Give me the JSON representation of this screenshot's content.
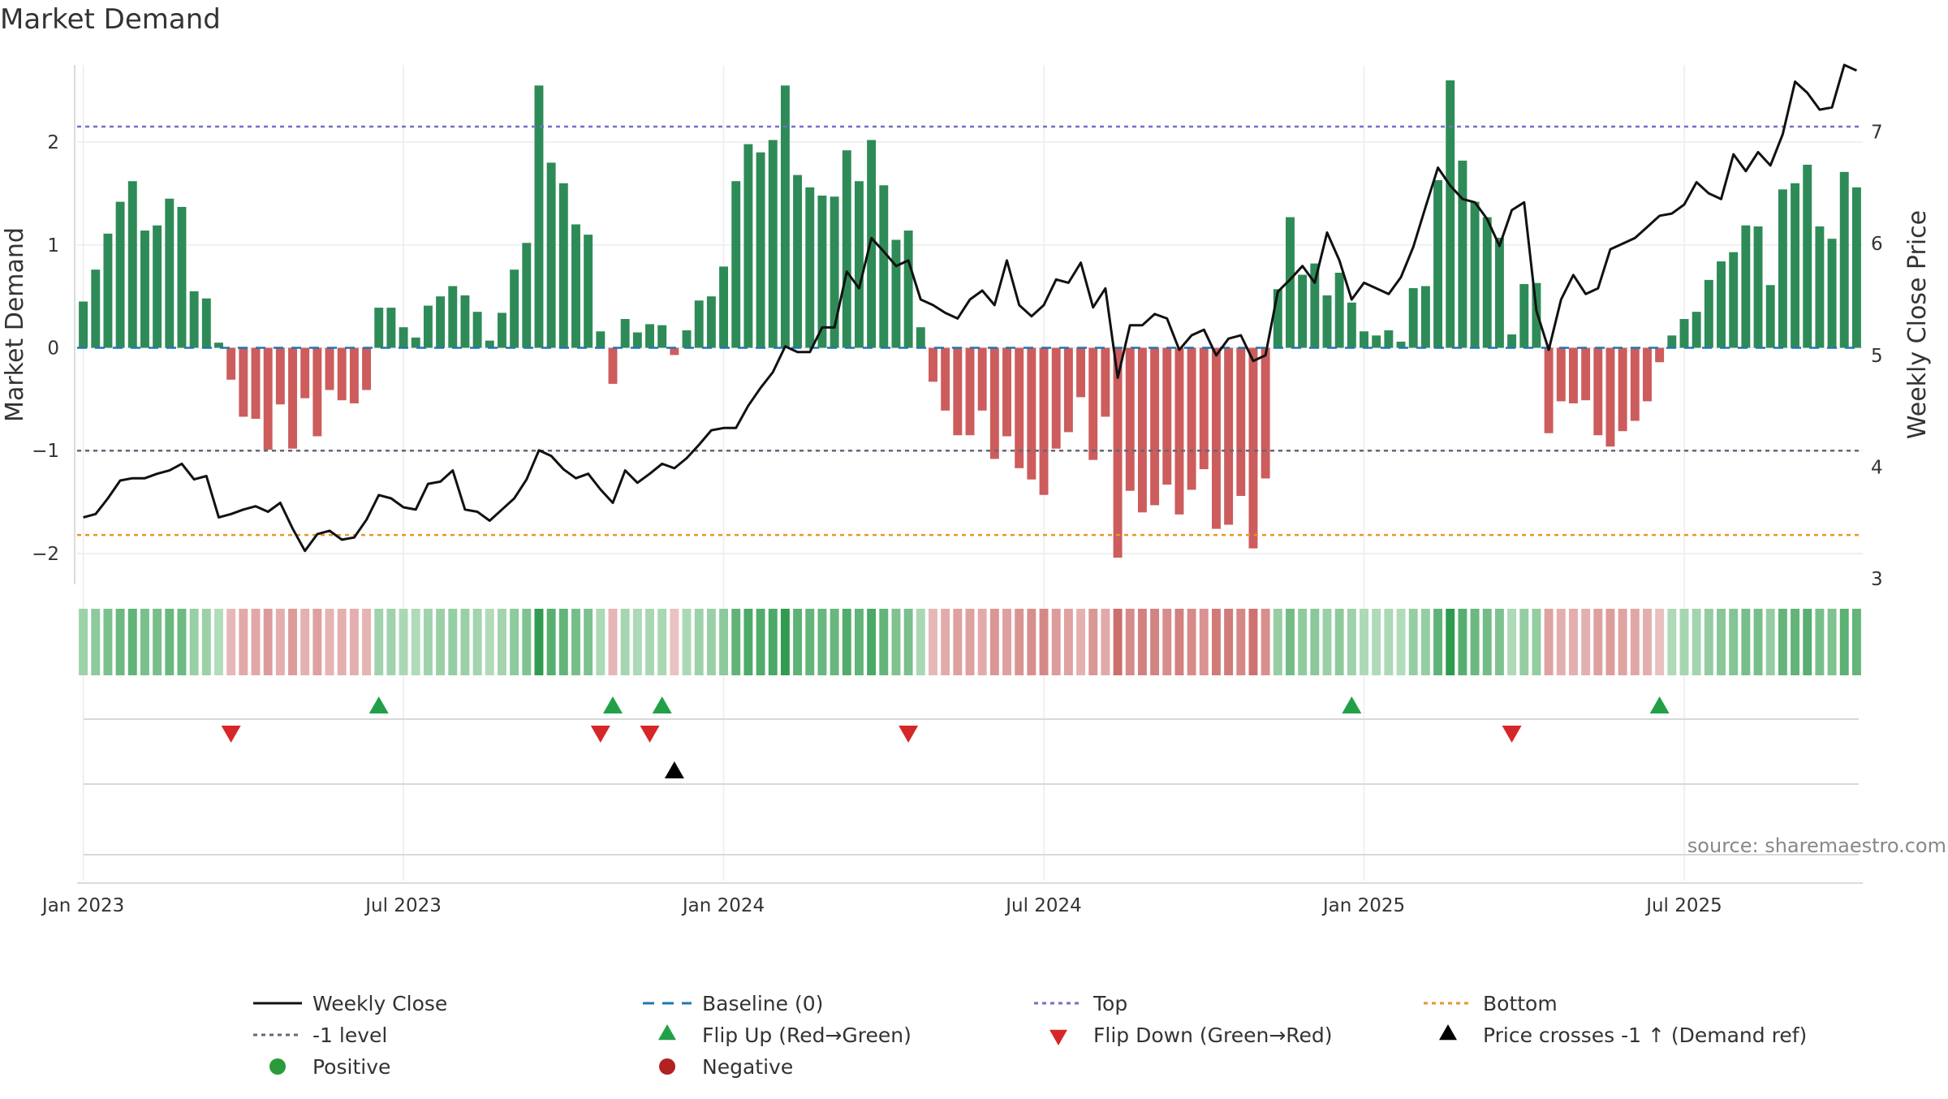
{
  "chart_data": {
    "type": "bar+line",
    "title": "Market Demand",
    "ylabel_left": "Market Demand",
    "ylabel_right": "Weekly Close Price",
    "ylim_left": [
      -2.3,
      2.75
    ],
    "ylim_right": [
      2.95,
      7.6
    ],
    "yticks_left": [
      {
        "v": 2,
        "label": "2"
      },
      {
        "v": 1,
        "label": "1"
      },
      {
        "v": 0,
        "label": "0"
      },
      {
        "v": -1,
        "label": "−1"
      },
      {
        "v": -2,
        "label": "−2"
      }
    ],
    "yticks_right": [
      {
        "v": 7,
        "label": "7"
      },
      {
        "v": 6,
        "label": "6"
      },
      {
        "v": 5,
        "label": "5"
      },
      {
        "v": 4,
        "label": "4"
      },
      {
        "v": 3,
        "label": "3"
      }
    ],
    "xticks": [
      {
        "week": 1,
        "label": "Jan 2023"
      },
      {
        "week": 27,
        "label": "Jul 2023"
      },
      {
        "week": 53,
        "label": "Jan 2024"
      },
      {
        "week": 79,
        "label": "Jul 2024"
      },
      {
        "week": 105,
        "label": "Jan 2025"
      },
      {
        "week": 131,
        "label": "Jul 2025"
      }
    ],
    "reference_lines": {
      "top": 2.15,
      "minus1": -1,
      "bottom": -1.82,
      "baseline": 0
    },
    "demand": [
      0.45,
      0.76,
      1.11,
      1.42,
      1.62,
      1.14,
      1.19,
      1.45,
      1.37,
      0.55,
      0.48,
      0.05,
      -0.31,
      -0.67,
      -0.69,
      -0.99,
      -0.55,
      -0.98,
      -0.49,
      -0.86,
      -0.41,
      -0.51,
      -0.54,
      -0.41,
      0.39,
      0.39,
      0.2,
      0.1,
      0.41,
      0.5,
      0.6,
      0.51,
      0.35,
      0.07,
      0.34,
      0.76,
      1.02,
      2.55,
      1.8,
      1.6,
      1.2,
      1.1,
      0.16,
      -0.35,
      0.28,
      0.15,
      0.23,
      0.22,
      -0.07,
      0.17,
      0.46,
      0.5,
      0.79,
      1.62,
      1.98,
      1.9,
      2.02,
      2.55,
      1.68,
      1.56,
      1.48,
      1.47,
      1.92,
      1.62,
      2.02,
      1.58,
      1.05,
      1.14,
      0.2,
      -0.33,
      -0.61,
      -0.85,
      -0.85,
      -0.61,
      -1.08,
      -0.86,
      -1.17,
      -1.28,
      -1.43,
      -0.98,
      -0.82,
      -0.48,
      -1.09,
      -0.67,
      -2.04,
      -1.39,
      -1.6,
      -1.53,
      -1.33,
      -1.62,
      -1.38,
      -1.18,
      -1.76,
      -1.72,
      -1.44,
      -1.95,
      -1.27,
      0.57,
      1.27,
      0.71,
      0.82,
      0.51,
      0.73,
      0.44,
      0.16,
      0.12,
      0.17,
      0.06,
      0.58,
      0.6,
      1.63,
      2.6,
      1.82,
      1.42,
      1.27,
      1.07,
      0.13,
      0.62,
      0.63,
      -0.83,
      -0.52,
      -0.54,
      -0.51,
      -0.85,
      -0.96,
      -0.81,
      -0.71,
      -0.52,
      -0.14,
      0.12,
      0.28,
      0.35,
      0.66,
      0.84,
      0.93,
      1.19,
      1.18,
      0.61,
      1.54,
      1.6,
      1.78,
      1.18,
      1.06,
      1.71,
      1.56
    ],
    "price": [
      3.55,
      3.58,
      3.72,
      3.88,
      3.9,
      3.9,
      3.94,
      3.97,
      4.03,
      3.89,
      3.92,
      3.55,
      3.58,
      3.62,
      3.65,
      3.6,
      3.68,
      3.45,
      3.25,
      3.4,
      3.43,
      3.35,
      3.37,
      3.53,
      3.75,
      3.72,
      3.64,
      3.62,
      3.85,
      3.87,
      3.97,
      3.62,
      3.6,
      3.52,
      3.62,
      3.72,
      3.89,
      4.15,
      4.1,
      3.98,
      3.9,
      3.94,
      3.8,
      3.68,
      3.97,
      3.86,
      3.94,
      4.03,
      3.99,
      4.08,
      4.2,
      4.33,
      4.35,
      4.35,
      4.55,
      4.71,
      4.85,
      5.08,
      5.03,
      5.03,
      5.25,
      5.25,
      5.75,
      5.6,
      6.05,
      5.93,
      5.8,
      5.85,
      5.5,
      5.45,
      5.38,
      5.33,
      5.5,
      5.58,
      5.45,
      5.85,
      5.45,
      5.35,
      5.45,
      5.68,
      5.65,
      5.83,
      5.43,
      5.6,
      4.8,
      5.27,
      5.27,
      5.37,
      5.33,
      5.05,
      5.18,
      5.23,
      5.0,
      5.15,
      5.18,
      4.95,
      5.0,
      5.57,
      5.68,
      5.8,
      5.65,
      6.1,
      5.85,
      5.5,
      5.65,
      5.6,
      5.55,
      5.7,
      5.97,
      6.33,
      6.68,
      6.52,
      6.4,
      6.37,
      6.22,
      5.98,
      6.3,
      6.37,
      5.4,
      5.05,
      5.5,
      5.72,
      5.55,
      5.6,
      5.95,
      6.0,
      6.05,
      6.15,
      6.25,
      6.27,
      6.35,
      6.55,
      6.45,
      6.4,
      6.8,
      6.65,
      6.82,
      6.7,
      6.98,
      7.45,
      7.35,
      7.2,
      7.22,
      7.6,
      7.55
    ],
    "flip_up_weeks": [
      25,
      44,
      48,
      104,
      129
    ],
    "flip_down_weeks": [
      13,
      43,
      47,
      68,
      117
    ],
    "price_cross_weeks": [
      49
    ],
    "source": "source: sharemaestro.com",
    "legend": [
      {
        "key": "weekly_close",
        "label": "Weekly Close",
        "color": "#111111"
      },
      {
        "key": "baseline",
        "label": "Baseline (0)",
        "color": "#1f77b4"
      },
      {
        "key": "top",
        "label": "Top",
        "color": "#7070c8"
      },
      {
        "key": "bottom",
        "label": "Bottom",
        "color": "#e8952a"
      },
      {
        "key": "minus1",
        "label": "-1 level",
        "color": "#666677"
      },
      {
        "key": "flip_up",
        "label": "Flip Up (Red→Green)",
        "color": "#22a048"
      },
      {
        "key": "flip_down",
        "label": "Flip Down (Green→Red)",
        "color": "#d62728"
      },
      {
        "key": "price_cross",
        "label": "Price crosses -1 ↑ (Demand ref)",
        "color": "#000000"
      },
      {
        "key": "positive",
        "label": "Positive",
        "color": "#2a9a3a"
      },
      {
        "key": "negative",
        "label": "Negative",
        "color": "#b22222"
      }
    ],
    "colors": {
      "pos": "#2e8b57",
      "neg": "#cd5c5c",
      "price": "#111111",
      "grid": "#e6e6e6"
    }
  }
}
